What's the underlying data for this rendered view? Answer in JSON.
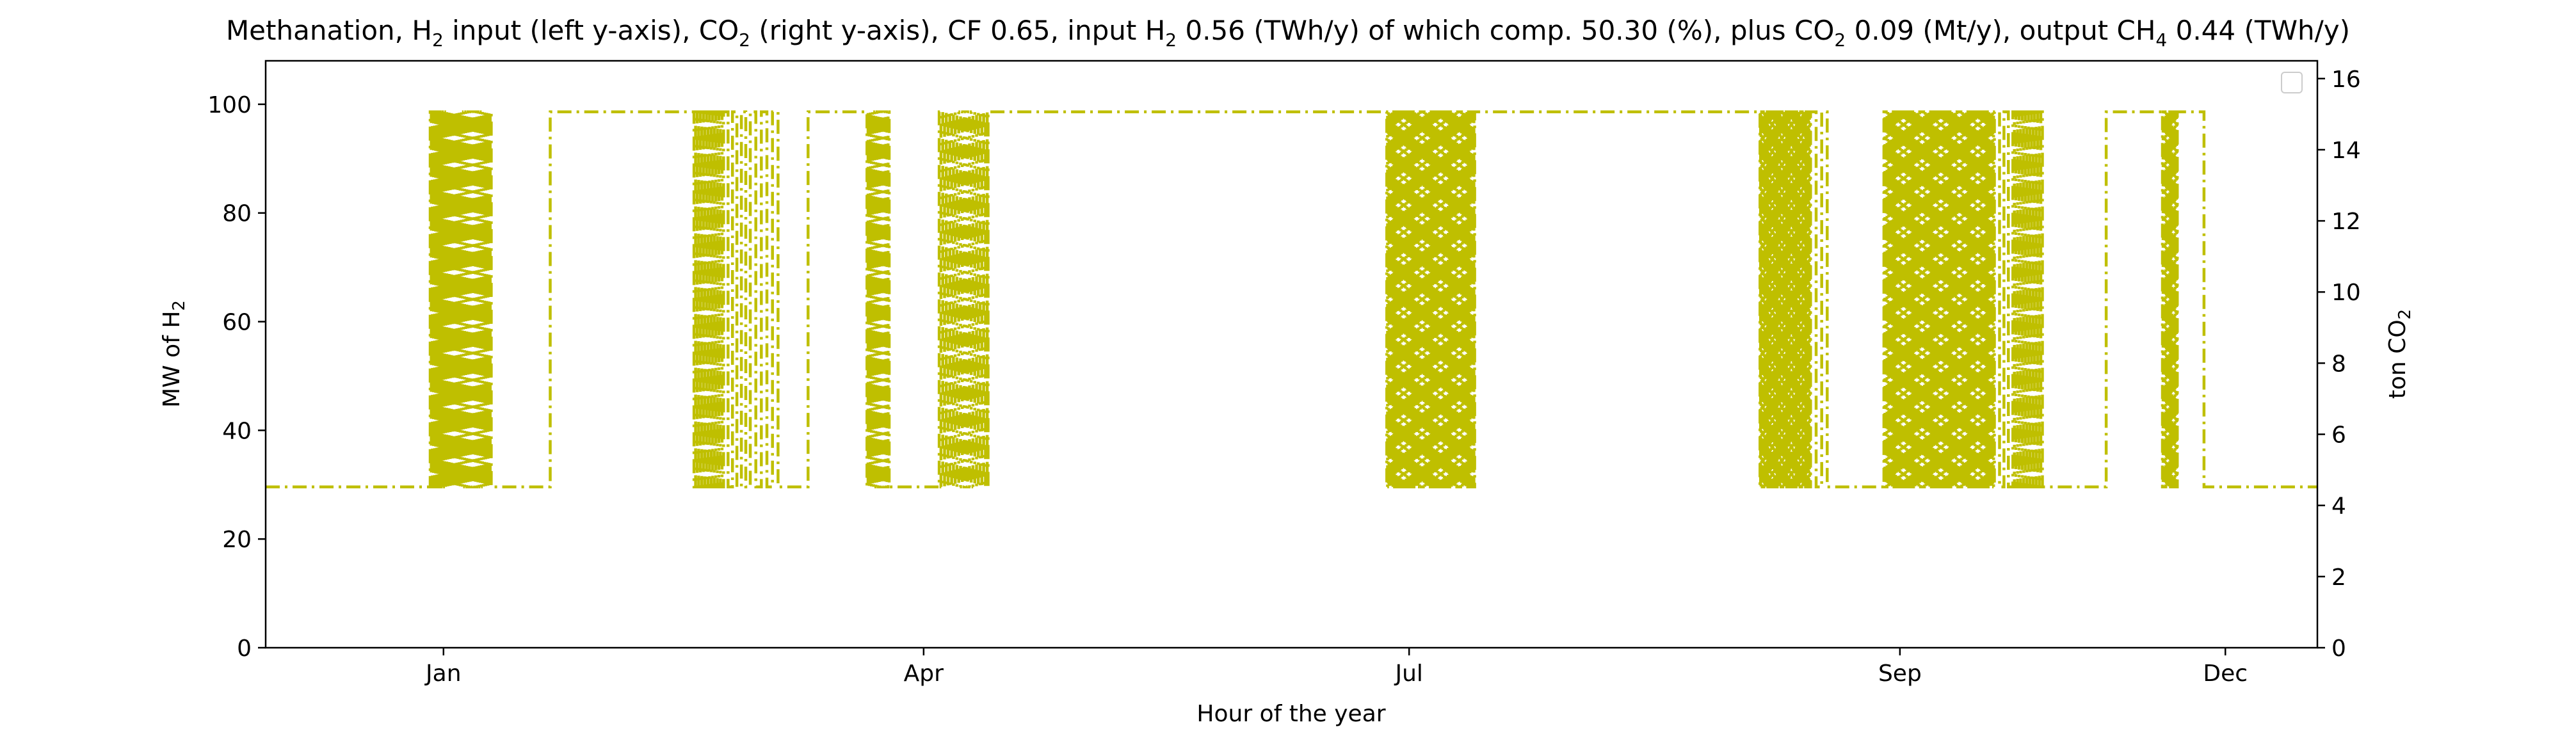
{
  "chart_data": {
    "type": "line",
    "title_parts": {
      "p1": "Methanation, H",
      "s1": "2",
      "p2": " input (left y-axis), CO",
      "s2": "2",
      "p3": " (right y-axis), CF 0.65, input H",
      "s3": "2",
      "p4": " 0.56 (TWh/y) of which comp. 50.30 (%), plus CO",
      "s4": "2",
      "p5": " 0.09 (Mt/y), output CH",
      "s5": "4",
      "p6": " 0.44 (TWh/y)"
    },
    "xlabel": "Hour of the year",
    "ylabel_left": {
      "base": "MW of H",
      "sub": "2"
    },
    "ylabel_right": {
      "base": "ton CO",
      "sub": "2"
    },
    "x_ticks": [
      {
        "label": "Jan",
        "hour": 0
      },
      {
        "label": "Apr",
        "hour": 2160
      },
      {
        "label": "Jul",
        "hour": 4344
      },
      {
        "label": "Sep",
        "hour": 6552
      },
      {
        "label": "Dec",
        "hour": 8016
      }
    ],
    "xlim": [
      -800,
      8430
    ],
    "ylim_left": [
      0,
      108
    ],
    "yticks_left": [
      0,
      20,
      40,
      60,
      80,
      100
    ],
    "ylim_right": [
      0,
      16.5
    ],
    "yticks_right": [
      0,
      2,
      4,
      6,
      8,
      10,
      12,
      14,
      16
    ],
    "grid": false,
    "legend": "top-right (empty)",
    "series": [
      {
        "color": "#bfbf00",
        "style": "dash-dot",
        "min_level": 29.6,
        "max_level": 98.6,
        "segments": [
          {
            "start": -800,
            "end": -60,
            "mode": "min"
          },
          {
            "start": -60,
            "end": 220,
            "mode": "burst",
            "period": 10
          },
          {
            "start": 220,
            "end": 480,
            "mode": "min"
          },
          {
            "start": 480,
            "end": 1120,
            "mode": "max"
          },
          {
            "start": 1120,
            "end": 1260,
            "mode": "burst",
            "period": 14
          },
          {
            "start": 1260,
            "end": 1380,
            "mode": "burst",
            "period": 40
          },
          {
            "start": 1380,
            "end": 1520,
            "mode": "burst",
            "period": 50
          },
          {
            "start": 1520,
            "end": 1640,
            "mode": "min"
          },
          {
            "start": 1640,
            "end": 1900,
            "mode": "max"
          },
          {
            "start": 1900,
            "end": 2010,
            "mode": "burst",
            "period": 10
          },
          {
            "start": 2010,
            "end": 2230,
            "mode": "min"
          },
          {
            "start": 2230,
            "end": 2450,
            "mode": "burst",
            "period": 16
          },
          {
            "start": 2450,
            "end": 4240,
            "mode": "max"
          },
          {
            "start": 4240,
            "end": 4640,
            "mode": "burst",
            "period": 7
          },
          {
            "start": 4640,
            "end": 5920,
            "mode": "max"
          },
          {
            "start": 5920,
            "end": 6150,
            "mode": "burst",
            "period": 5
          },
          {
            "start": 6150,
            "end": 6250,
            "mode": "burst",
            "period": 50
          },
          {
            "start": 6250,
            "end": 6480,
            "mode": "min"
          },
          {
            "start": 6480,
            "end": 6980,
            "mode": "burst",
            "period": 7
          },
          {
            "start": 6980,
            "end": 7060,
            "mode": "burst",
            "period": 40
          },
          {
            "start": 7060,
            "end": 7200,
            "mode": "burst",
            "period": 14
          },
          {
            "start": 7200,
            "end": 7480,
            "mode": "min"
          },
          {
            "start": 7480,
            "end": 7730,
            "mode": "max"
          },
          {
            "start": 7730,
            "end": 7800,
            "mode": "burst",
            "period": 6
          },
          {
            "start": 7800,
            "end": 7920,
            "mode": "max"
          },
          {
            "start": 7920,
            "end": 8430,
            "mode": "min"
          }
        ]
      }
    ]
  }
}
